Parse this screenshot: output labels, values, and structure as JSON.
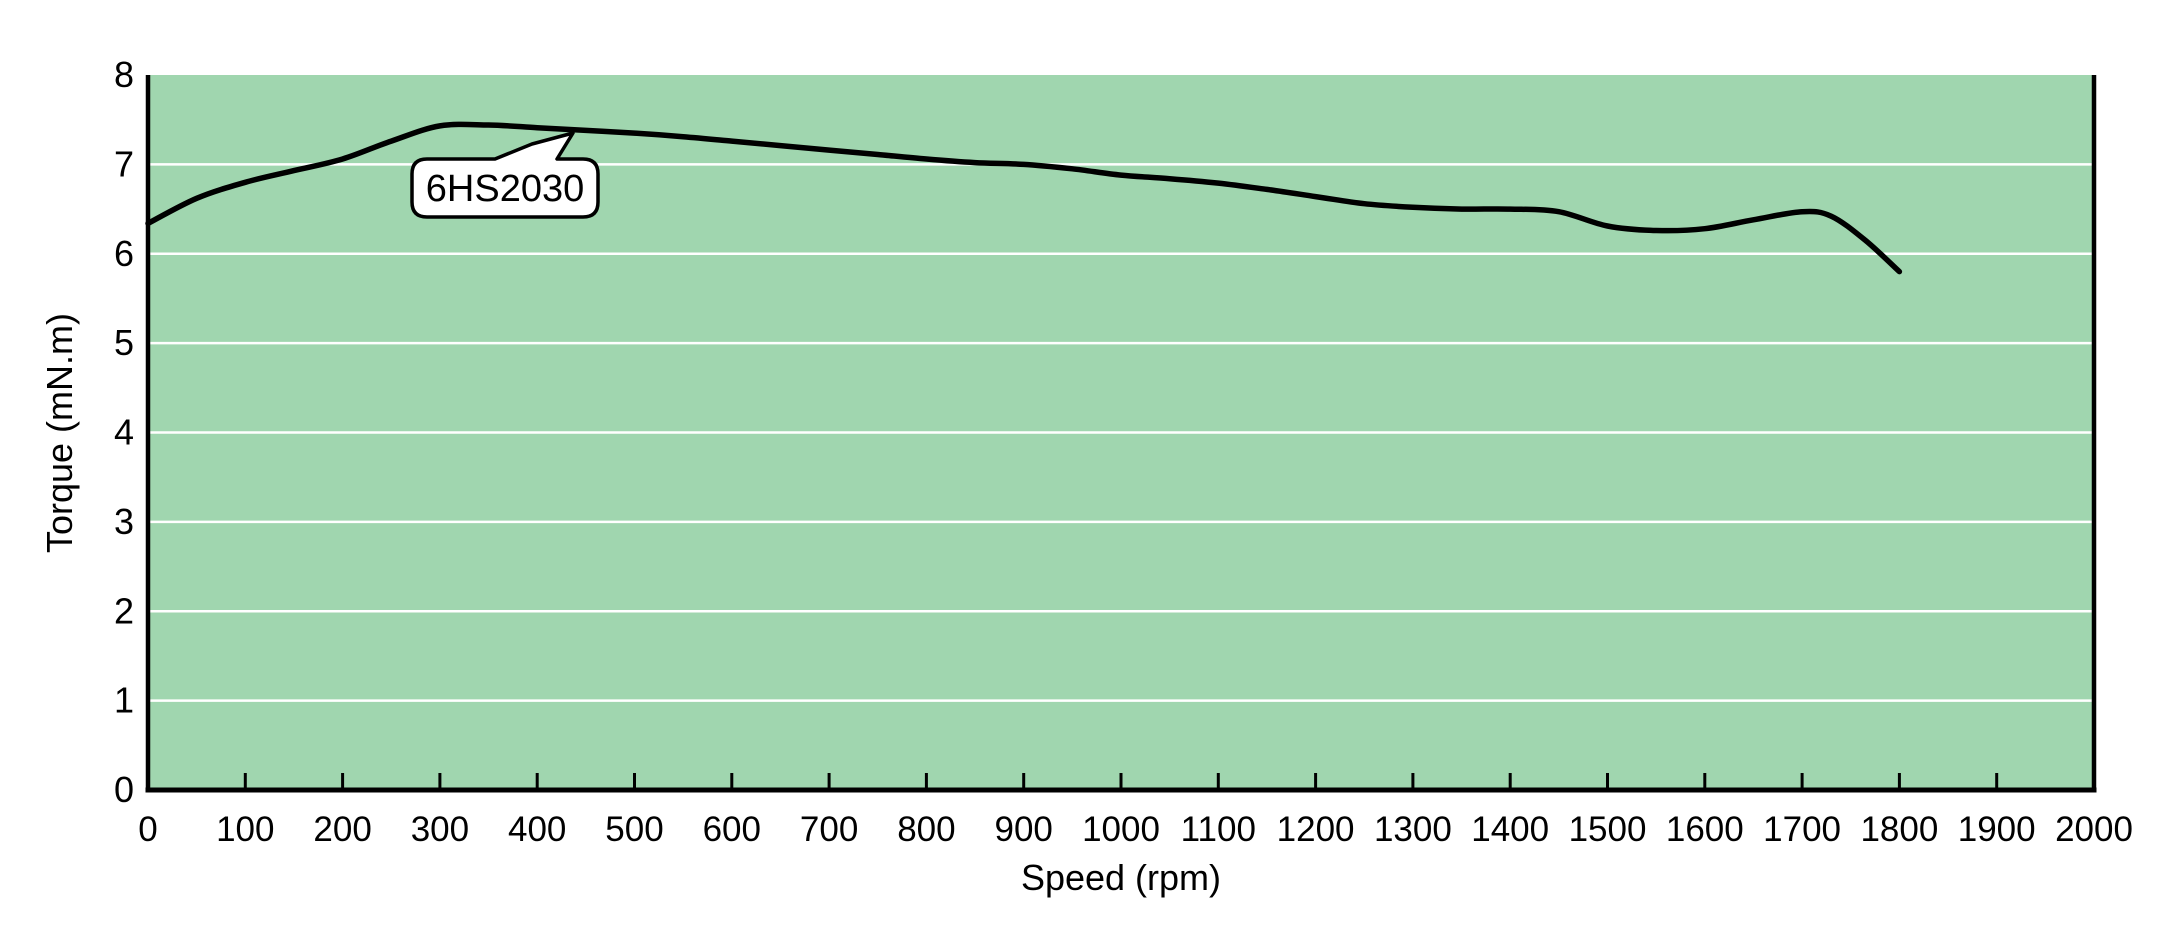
{
  "chart_data": {
    "type": "line",
    "title": "",
    "xlabel": "Speed (rpm)",
    "ylabel": "Torque (mN.m)",
    "xlim": [
      0,
      2000
    ],
    "ylim": [
      0,
      8
    ],
    "x_ticks": [
      0,
      100,
      200,
      300,
      400,
      500,
      600,
      700,
      800,
      900,
      1000,
      1100,
      1200,
      1300,
      1400,
      1500,
      1600,
      1700,
      1800,
      1900,
      2000
    ],
    "y_ticks": [
      0,
      1,
      2,
      3,
      4,
      5,
      6,
      7,
      8
    ],
    "grid": "horizontal-white-gridlines",
    "legend_position": "none",
    "series": [
      {
        "name": "6HS2030",
        "color": "#000000",
        "x": [
          0,
          50,
          100,
          150,
          200,
          250,
          300,
          350,
          400,
          450,
          500,
          550,
          600,
          650,
          700,
          750,
          800,
          850,
          900,
          950,
          1000,
          1050,
          1100,
          1150,
          1200,
          1250,
          1300,
          1350,
          1400,
          1450,
          1500,
          1550,
          1600,
          1650,
          1700,
          1730,
          1765,
          1800
        ],
        "y": [
          6.34,
          6.62,
          6.8,
          6.93,
          7.06,
          7.26,
          7.43,
          7.44,
          7.41,
          7.38,
          7.35,
          7.31,
          7.26,
          7.21,
          7.16,
          7.11,
          7.06,
          7.02,
          7.0,
          6.95,
          6.88,
          6.84,
          6.79,
          6.72,
          6.64,
          6.56,
          6.52,
          6.5,
          6.5,
          6.47,
          6.31,
          6.26,
          6.28,
          6.38,
          6.47,
          6.42,
          6.15,
          5.8
        ]
      }
    ],
    "annotation": {
      "label": "6HS2030",
      "anchor": {
        "x": 440,
        "y": 7.34
      }
    }
  },
  "axes": {
    "x_title": "Speed (rpm)",
    "y_title": "Torque (mN.m)"
  },
  "callout": {
    "label": "6HS2030"
  },
  "colors": {
    "page_background": "#FFFFFF",
    "plot_background": "#A0D6AF",
    "gridline": "#FFFFFF",
    "curve": "#000000",
    "axis": "#000000",
    "text": "#000000",
    "callout_fill": "#FFFFFF",
    "callout_border": "#000000"
  }
}
